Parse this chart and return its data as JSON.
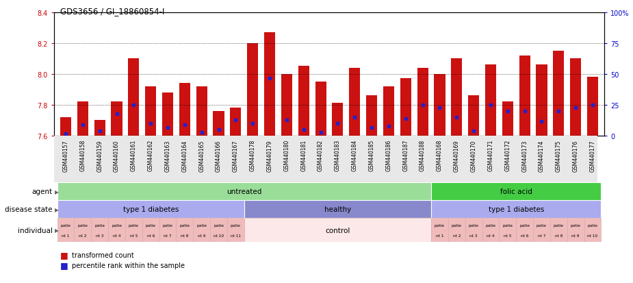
{
  "title": "GDS3656 / GI_18860854-I",
  "ylim": [
    7.6,
    8.4
  ],
  "yticks_left": [
    7.6,
    7.8,
    8.0,
    8.2,
    8.4
  ],
  "yticks_right": [
    0,
    25,
    50,
    75,
    100
  ],
  "ylabel_left_color": "#cc0000",
  "ylabel_right_color": "#0000cc",
  "bar_color": "#cc1111",
  "dot_color": "#2222cc",
  "samples": [
    "GSM440157",
    "GSM440158",
    "GSM440159",
    "GSM440160",
    "GSM440161",
    "GSM440162",
    "GSM440163",
    "GSM440164",
    "GSM440165",
    "GSM440166",
    "GSM440167",
    "GSM440178",
    "GSM440179",
    "GSM440180",
    "GSM440181",
    "GSM440182",
    "GSM440183",
    "GSM440184",
    "GSM440185",
    "GSM440186",
    "GSM440187",
    "GSM440188",
    "GSM440168",
    "GSM440169",
    "GSM440170",
    "GSM440171",
    "GSM440172",
    "GSM440173",
    "GSM440174",
    "GSM440175",
    "GSM440176",
    "GSM440177"
  ],
  "bar_heights": [
    7.72,
    7.82,
    7.7,
    7.82,
    8.1,
    7.92,
    7.88,
    7.94,
    7.92,
    7.76,
    7.78,
    8.2,
    8.27,
    8.0,
    8.05,
    7.95,
    7.81,
    8.04,
    7.86,
    7.92,
    7.97,
    8.04,
    8.0,
    8.1,
    7.86,
    8.06,
    7.82,
    8.12,
    8.06,
    8.15,
    8.1,
    7.98
  ],
  "dot_positions": [
    7.61,
    7.67,
    7.63,
    7.74,
    7.8,
    7.68,
    7.65,
    7.67,
    7.62,
    7.64,
    7.7,
    7.68,
    7.97,
    7.7,
    7.64,
    7.62,
    7.68,
    7.72,
    7.65,
    7.66,
    7.71,
    7.8,
    7.78,
    7.72,
    7.63,
    7.8,
    7.76,
    7.76,
    7.69,
    7.76,
    7.78,
    7.8
  ],
  "agent_groups": [
    {
      "label": "untreated",
      "start": 0,
      "end": 22,
      "color": "#99dd99"
    },
    {
      "label": "folic acid",
      "start": 22,
      "end": 32,
      "color": "#44cc44"
    }
  ],
  "disease_groups": [
    {
      "label": "type 1 diabetes",
      "start": 0,
      "end": 11,
      "color": "#aaaaee"
    },
    {
      "label": "healthy",
      "start": 11,
      "end": 22,
      "color": "#8888cc"
    },
    {
      "label": "type 1 diabetes",
      "start": 22,
      "end": 32,
      "color": "#aaaaee"
    }
  ],
  "individual_groups": [
    {
      "label": "patie\nnt 1",
      "start": 0,
      "end": 1,
      "color": "#f0bbbb"
    },
    {
      "label": "patie\nnt 2",
      "start": 1,
      "end": 2,
      "color": "#f0bbbb"
    },
    {
      "label": "patie\nnt 3",
      "start": 2,
      "end": 3,
      "color": "#f0bbbb"
    },
    {
      "label": "patie\nnt 4",
      "start": 3,
      "end": 4,
      "color": "#f0bbbb"
    },
    {
      "label": "patie\nnt 5",
      "start": 4,
      "end": 5,
      "color": "#f0bbbb"
    },
    {
      "label": "patie\nnt 6",
      "start": 5,
      "end": 6,
      "color": "#f0bbbb"
    },
    {
      "label": "patie\nnt 7",
      "start": 6,
      "end": 7,
      "color": "#f0bbbb"
    },
    {
      "label": "patie\nnt 8",
      "start": 7,
      "end": 8,
      "color": "#f0bbbb"
    },
    {
      "label": "patie\nnt 9",
      "start": 8,
      "end": 9,
      "color": "#f0bbbb"
    },
    {
      "label": "patie\nnt 10",
      "start": 9,
      "end": 10,
      "color": "#f0bbbb"
    },
    {
      "label": "patie\nnt 11",
      "start": 10,
      "end": 11,
      "color": "#f0bbbb"
    },
    {
      "label": "control",
      "start": 11,
      "end": 22,
      "color": "#fce8e8"
    },
    {
      "label": "patie\nnt 1",
      "start": 22,
      "end": 23,
      "color": "#f0bbbb"
    },
    {
      "label": "patie\nnt 2",
      "start": 23,
      "end": 24,
      "color": "#f0bbbb"
    },
    {
      "label": "patie\nnt 3",
      "start": 24,
      "end": 25,
      "color": "#f0bbbb"
    },
    {
      "label": "patie\nnt 4",
      "start": 25,
      "end": 26,
      "color": "#f0bbbb"
    },
    {
      "label": "patie\nnt 5",
      "start": 26,
      "end": 27,
      "color": "#f0bbbb"
    },
    {
      "label": "patie\nnt 6",
      "start": 27,
      "end": 28,
      "color": "#f0bbbb"
    },
    {
      "label": "patie\nnt 7",
      "start": 28,
      "end": 29,
      "color": "#f0bbbb"
    },
    {
      "label": "patie\nnt 8",
      "start": 29,
      "end": 30,
      "color": "#f0bbbb"
    },
    {
      "label": "patie\nnt 9",
      "start": 30,
      "end": 31,
      "color": "#f0bbbb"
    },
    {
      "label": "patie\nnt 10",
      "start": 31,
      "end": 32,
      "color": "#f0bbbb"
    }
  ],
  "row_labels": [
    "agent",
    "disease state",
    "individual"
  ],
  "legend_items": [
    {
      "label": "transformed count",
      "color": "#cc1111"
    },
    {
      "label": "percentile rank within the sample",
      "color": "#2222cc"
    }
  ]
}
